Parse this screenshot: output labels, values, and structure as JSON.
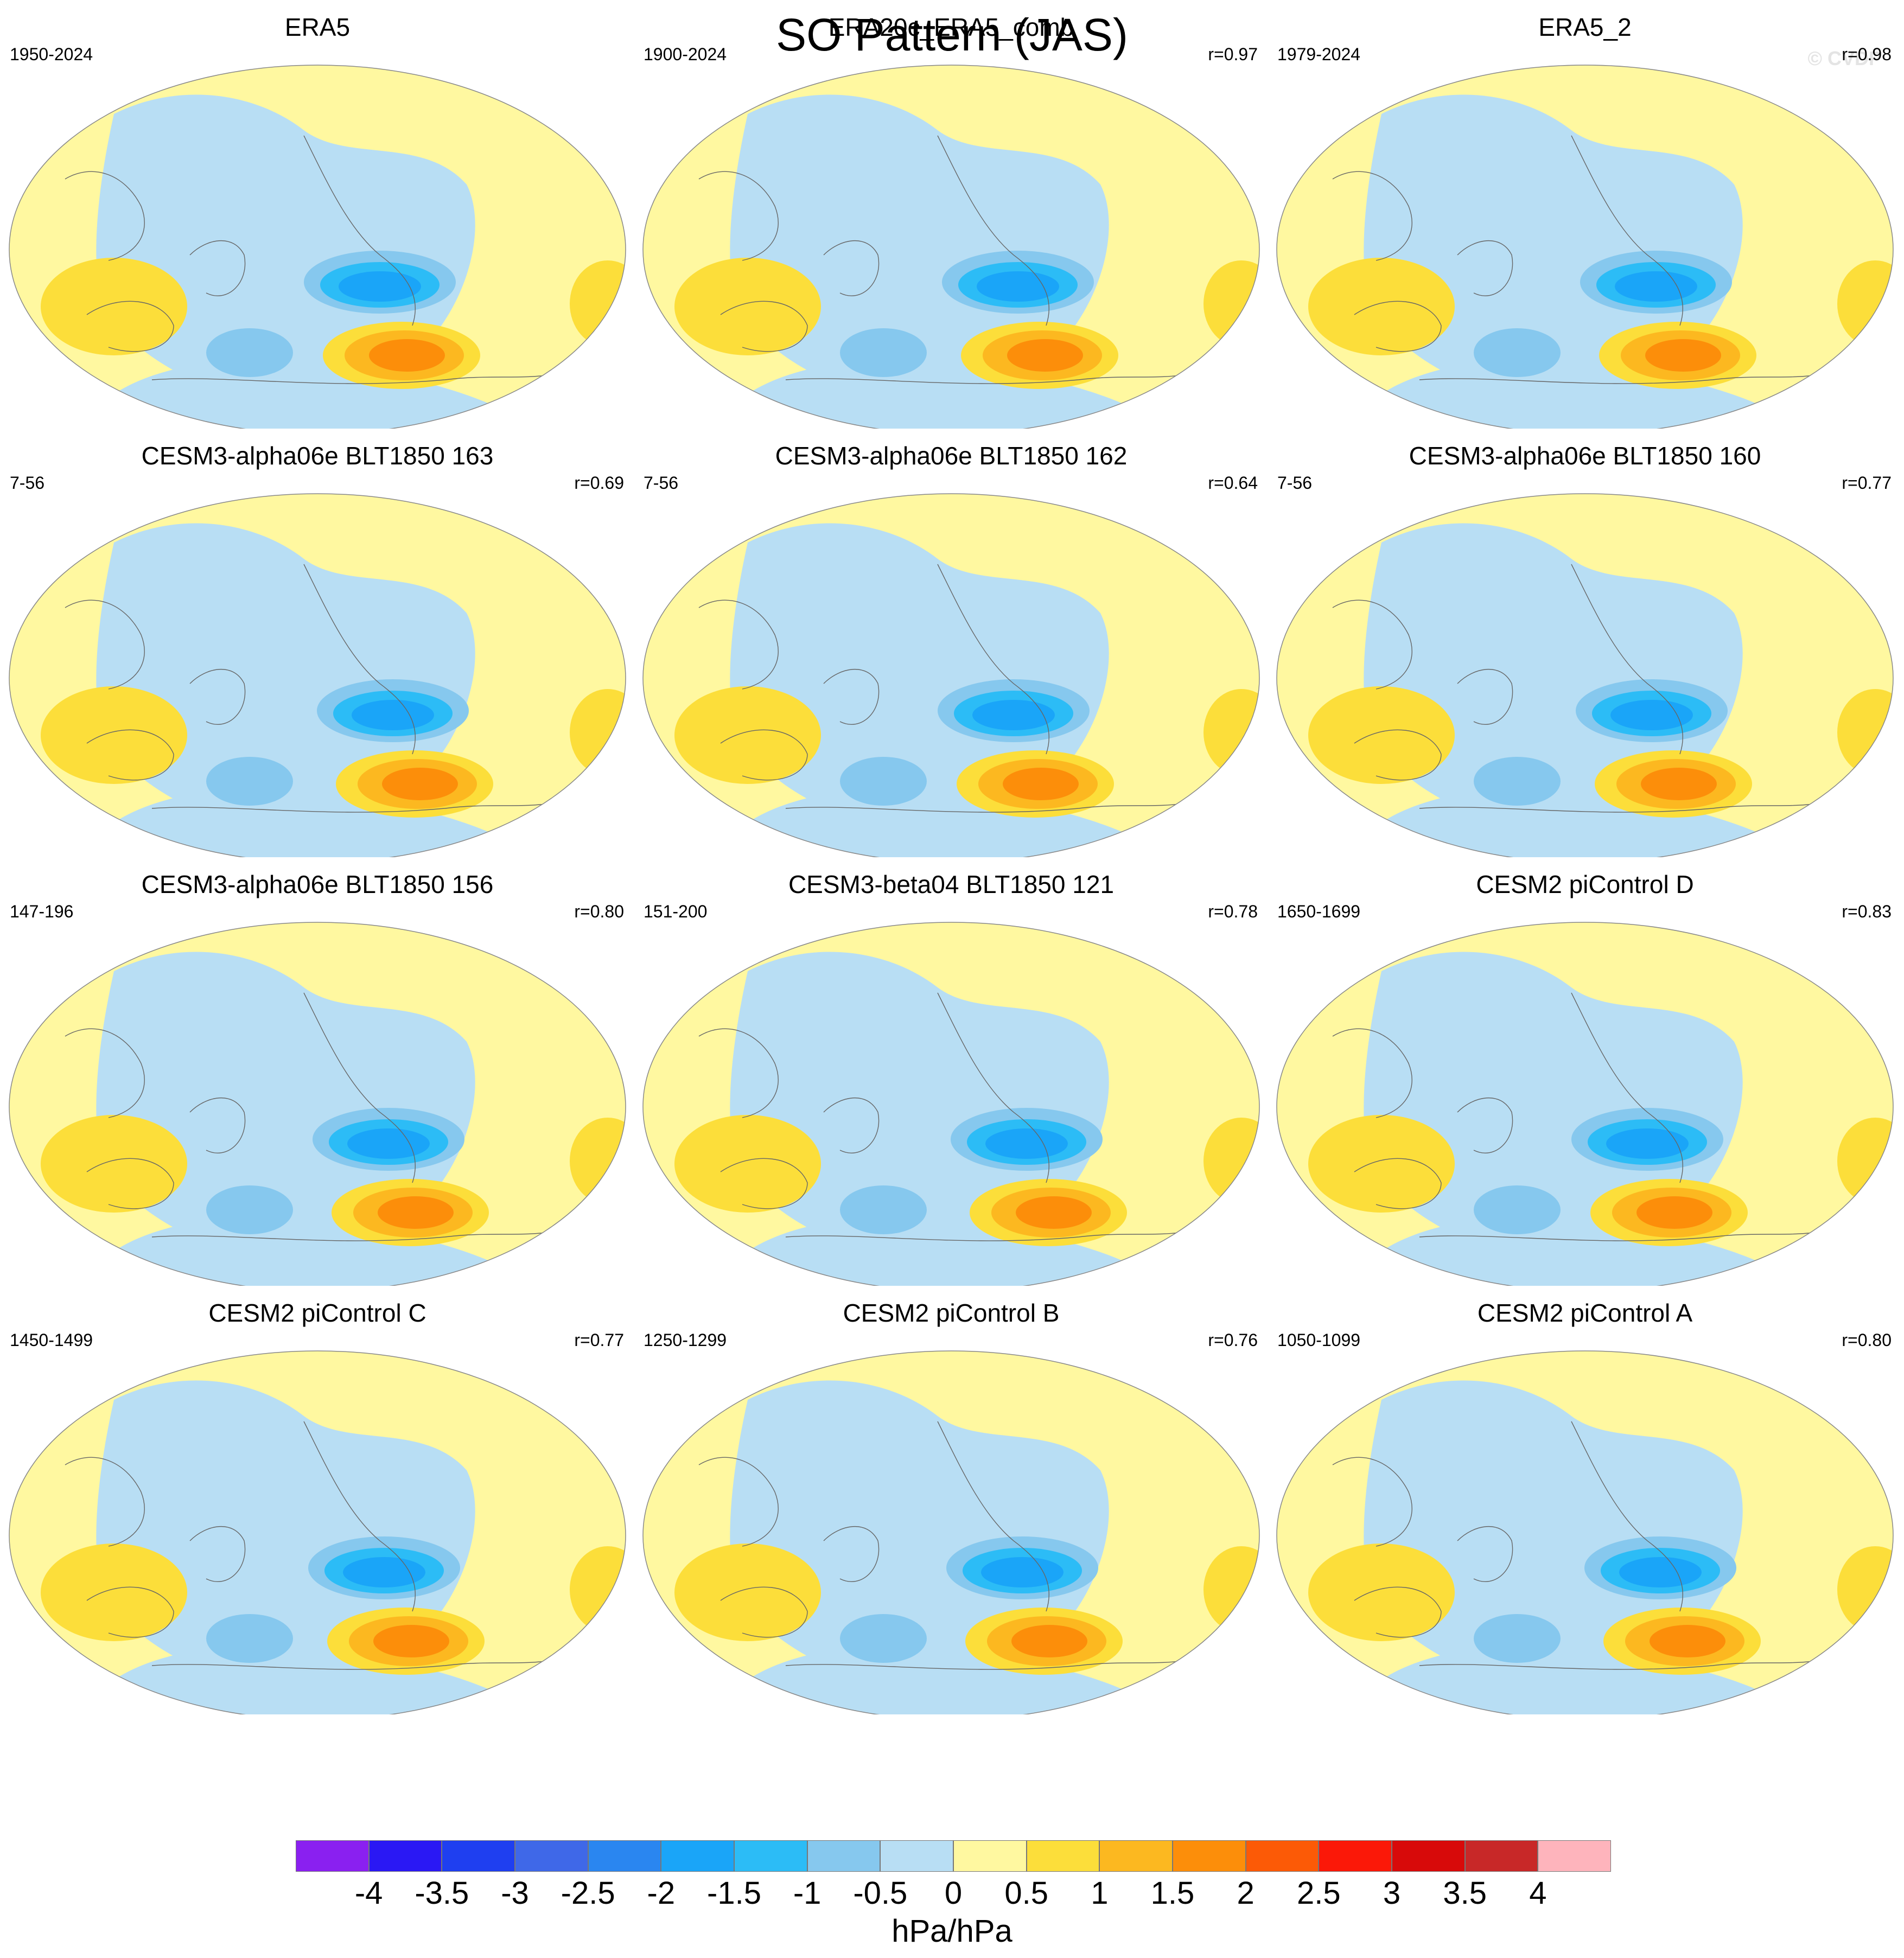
{
  "chart_data": {
    "type": "heatmap",
    "title": "SO Pattern (JAS)",
    "watermark": "© CVDP",
    "units": "hPa/hPa",
    "colorbar": {
      "labels": [
        "-4",
        "-3.5",
        "-3",
        "-2.5",
        "-2",
        "-1.5",
        "-1",
        "-0.5",
        "0",
        "0.5",
        "1",
        "1.5",
        "2",
        "2.5",
        "3",
        "3.5",
        "4"
      ],
      "colors": [
        "#8a20f0",
        "#2a18f4",
        "#1f3ff0",
        "#3f68e8",
        "#2a86f0",
        "#1aa5f8",
        "#2cbcf6",
        "#86c8ee",
        "#b8def4",
        "#fff8a0",
        "#fcde3a",
        "#fcb820",
        "#fc8e0a",
        "#fc5a06",
        "#fb1808",
        "#d80a0a",
        "#c82828",
        "#feb4bc"
      ]
    },
    "panels": [
      {
        "title": "ERA5",
        "period": "1950-2024",
        "r": ""
      },
      {
        "title": "ERA20c_ERA5_comb",
        "period": "1900-2024",
        "r": "r=0.97"
      },
      {
        "title": "ERA5_2",
        "period": "1979-2024",
        "r": "r=0.98"
      },
      {
        "title": "CESM3-alpha06e BLT1850 163",
        "period": "7-56",
        "r": "r=0.69"
      },
      {
        "title": "CESM3-alpha06e BLT1850 162",
        "period": "7-56",
        "r": "r=0.64"
      },
      {
        "title": "CESM3-alpha06e BLT1850 160",
        "period": "7-56",
        "r": "r=0.77"
      },
      {
        "title": "CESM3-alpha06e BLT1850 156",
        "period": "147-196",
        "r": "r=0.80"
      },
      {
        "title": "CESM3-beta04 BLT1850 121",
        "period": "151-200",
        "r": "r=0.78"
      },
      {
        "title": "CESM2 piControl D",
        "period": "1650-1699",
        "r": "r=0.83"
      },
      {
        "title": "CESM2 piControl C",
        "period": "1450-1499",
        "r": "r=0.77"
      },
      {
        "title": "CESM2 piControl B",
        "period": "1250-1299",
        "r": "r=0.76"
      },
      {
        "title": "CESM2 piControl A",
        "period": "1050-1099",
        "r": "r=0.80"
      }
    ]
  }
}
